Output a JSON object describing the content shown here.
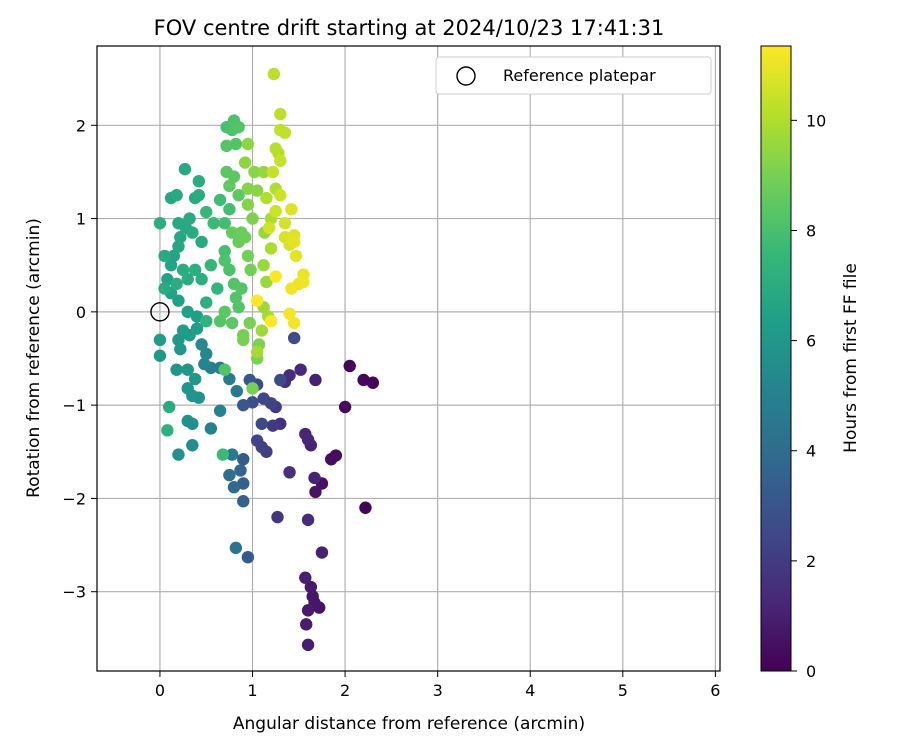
{
  "chart_data": {
    "type": "scatter",
    "title": "FOV centre drift starting at 2024/10/23 17:41:31",
    "xlabel": "Angular distance from reference (arcmin)",
    "ylabel": "Rotation from reference (arcmin)",
    "xlim": [
      -0.68,
      6.05
    ],
    "ylim": [
      -3.85,
      2.85
    ],
    "x_ticks": [
      0,
      1,
      2,
      3,
      4,
      5,
      6
    ],
    "y_ticks": [
      -3,
      -2,
      -1,
      0,
      1,
      2
    ],
    "grid": true,
    "legend": {
      "placement": "top-right",
      "entries": [
        {
          "label": "Reference platepar",
          "marker": "open-circle"
        }
      ]
    },
    "reference_point": {
      "x": 0,
      "y": 0
    },
    "colorbar": {
      "label": "Hours from first FF file",
      "colormap": "viridis",
      "range": [
        0,
        11.35
      ],
      "ticks": [
        0,
        2,
        4,
        6,
        8,
        10
      ]
    },
    "series": [
      {
        "color_key": "hours",
        "points": [
          {
            "x": 2.05,
            "y": -0.58,
            "c": 0.2
          },
          {
            "x": 2.2,
            "y": -0.73,
            "c": 0.2
          },
          {
            "x": 2.3,
            "y": -0.76,
            "c": 0.1
          },
          {
            "x": 2.22,
            "y": -2.1,
            "c": 0.1
          },
          {
            "x": 2.0,
            "y": -1.02,
            "c": 0.3
          },
          {
            "x": 1.9,
            "y": -1.54,
            "c": 0.4
          },
          {
            "x": 1.85,
            "y": -1.58,
            "c": 0.4
          },
          {
            "x": 1.75,
            "y": -1.84,
            "c": 0.5
          },
          {
            "x": 1.68,
            "y": -1.93,
            "c": 0.6
          },
          {
            "x": 1.72,
            "y": -3.17,
            "c": 0.6
          },
          {
            "x": 1.67,
            "y": -3.12,
            "c": 0.7
          },
          {
            "x": 1.65,
            "y": -3.05,
            "c": 0.7
          },
          {
            "x": 1.63,
            "y": -2.95,
            "c": 0.8
          },
          {
            "x": 1.6,
            "y": -3.2,
            "c": 0.8
          },
          {
            "x": 1.58,
            "y": -3.35,
            "c": 0.9
          },
          {
            "x": 1.6,
            "y": -3.57,
            "c": 0.9
          },
          {
            "x": 1.57,
            "y": -2.85,
            "c": 1.0
          },
          {
            "x": 1.75,
            "y": -2.58,
            "c": 1.0
          },
          {
            "x": 1.68,
            "y": -0.73,
            "c": 1.0
          },
          {
            "x": 1.67,
            "y": -1.78,
            "c": 1.1
          },
          {
            "x": 1.63,
            "y": -1.43,
            "c": 1.1
          },
          {
            "x": 1.6,
            "y": -1.37,
            "c": 1.2
          },
          {
            "x": 1.57,
            "y": -1.31,
            "c": 1.2
          },
          {
            "x": 1.52,
            "y": -0.62,
            "c": 1.3
          },
          {
            "x": 1.6,
            "y": -2.23,
            "c": 1.4
          },
          {
            "x": 1.35,
            "y": -0.75,
            "c": 1.5
          },
          {
            "x": 1.4,
            "y": -0.68,
            "c": 1.5
          },
          {
            "x": 1.4,
            "y": -1.72,
            "c": 1.6
          },
          {
            "x": 1.3,
            "y": -1.2,
            "c": 1.6
          },
          {
            "x": 1.27,
            "y": -2.2,
            "c": 1.8
          },
          {
            "x": 1.25,
            "y": -1.02,
            "c": 1.9
          },
          {
            "x": 1.22,
            "y": -1.22,
            "c": 2.0
          },
          {
            "x": 1.15,
            "y": -1.5,
            "c": 2.1
          },
          {
            "x": 1.1,
            "y": -1.45,
            "c": 2.2
          },
          {
            "x": 1.05,
            "y": -1.38,
            "c": 2.3
          },
          {
            "x": 1.2,
            "y": -0.98,
            "c": 2.3
          },
          {
            "x": 1.12,
            "y": -0.93,
            "c": 2.4
          },
          {
            "x": 1.1,
            "y": -1.2,
            "c": 2.5
          },
          {
            "x": 1.05,
            "y": -0.78,
            "c": 2.6
          },
          {
            "x": 1.3,
            "y": -0.73,
            "c": 2.6
          },
          {
            "x": 1.45,
            "y": -0.28,
            "c": 2.7
          },
          {
            "x": 1.0,
            "y": -0.97,
            "c": 2.8
          },
          {
            "x": 0.97,
            "y": -0.73,
            "c": 3.0
          },
          {
            "x": 0.9,
            "y": -1.0,
            "c": 3.1
          },
          {
            "x": 0.95,
            "y": -2.63,
            "c": 3.2
          },
          {
            "x": 0.9,
            "y": -1.58,
            "c": 3.3
          },
          {
            "x": 0.9,
            "y": -1.84,
            "c": 3.4
          },
          {
            "x": 0.9,
            "y": -2.03,
            "c": 3.5
          },
          {
            "x": 0.87,
            "y": -1.7,
            "c": 3.7
          },
          {
            "x": 0.8,
            "y": -1.88,
            "c": 3.9
          },
          {
            "x": 0.75,
            "y": -1.75,
            "c": 4.1
          },
          {
            "x": 0.82,
            "y": -2.53,
            "c": 4.3
          },
          {
            "x": 0.78,
            "y": -1.53,
            "c": 4.5
          },
          {
            "x": 0.83,
            "y": -0.85,
            "c": 4.6
          },
          {
            "x": 0.75,
            "y": -0.72,
            "c": 4.7
          },
          {
            "x": 0.65,
            "y": -0.6,
            "c": 4.8
          },
          {
            "x": 0.55,
            "y": -0.6,
            "c": 4.9
          },
          {
            "x": 0.55,
            "y": -1.25,
            "c": 5.0
          },
          {
            "x": 0.65,
            "y": -1.06,
            "c": 5.1
          },
          {
            "x": 0.48,
            "y": -0.56,
            "c": 5.2
          },
          {
            "x": 0.5,
            "y": -0.45,
            "c": 5.3
          },
          {
            "x": 0.45,
            "y": -0.35,
            "c": 5.4
          },
          {
            "x": 0.35,
            "y": -1.43,
            "c": 5.5
          },
          {
            "x": 0.35,
            "y": -1.2,
            "c": 5.6
          },
          {
            "x": 0.3,
            "y": -1.17,
            "c": 5.7
          },
          {
            "x": 0.42,
            "y": -0.92,
            "c": 5.8
          },
          {
            "x": 0.35,
            "y": -0.9,
            "c": 5.9
          },
          {
            "x": 0.3,
            "y": -0.82,
            "c": 5.9
          },
          {
            "x": 0.38,
            "y": -0.72,
            "c": 6.0
          },
          {
            "x": 0.3,
            "y": -0.62,
            "c": 6.0
          },
          {
            "x": 0.22,
            "y": -0.4,
            "c": 6.1
          },
          {
            "x": 0.2,
            "y": -0.3,
            "c": 6.1
          },
          {
            "x": 0.25,
            "y": -0.2,
            "c": 6.2
          },
          {
            "x": 0.32,
            "y": -0.25,
            "c": 6.2
          },
          {
            "x": 0.4,
            "y": -0.18,
            "c": 6.3
          },
          {
            "x": 0.4,
            "y": -0.05,
            "c": 6.3
          },
          {
            "x": 0.3,
            "y": 0.0,
            "c": 6.4
          },
          {
            "x": 0.2,
            "y": 0.12,
            "c": 6.4
          },
          {
            "x": 0.12,
            "y": 0.2,
            "c": 6.5
          },
          {
            "x": 0.08,
            "y": 0.35,
            "c": 6.5
          },
          {
            "x": 0.12,
            "y": 0.5,
            "c": 6.6
          },
          {
            "x": 0.15,
            "y": 0.6,
            "c": 6.6
          },
          {
            "x": 0.2,
            "y": 0.7,
            "c": 6.7
          },
          {
            "x": 0.22,
            "y": 0.8,
            "c": 6.7
          },
          {
            "x": 0.2,
            "y": 0.95,
            "c": 6.8
          },
          {
            "x": 0.28,
            "y": 0.9,
            "c": 6.8
          },
          {
            "x": 0.32,
            "y": 1.0,
            "c": 6.9
          },
          {
            "x": 0.35,
            "y": 0.85,
            "c": 6.9
          },
          {
            "x": 0.25,
            "y": 0.45,
            "c": 7.0
          },
          {
            "x": 0.3,
            "y": 0.35,
            "c": 7.0
          },
          {
            "x": 0.18,
            "y": 0.3,
            "c": 7.0
          },
          {
            "x": 0.05,
            "y": 0.6,
            "c": 6.9
          },
          {
            "x": 0.05,
            "y": 0.25,
            "c": 6.9
          },
          {
            "x": 0.0,
            "y": -0.3,
            "c": 6.2
          },
          {
            "x": 0.0,
            "y": -0.47,
            "c": 6.1
          },
          {
            "x": 0.18,
            "y": -0.62,
            "c": 6.0
          },
          {
            "x": 0.2,
            "y": -1.53,
            "c": 5.7
          },
          {
            "x": 0.1,
            "y": -1.02,
            "c": 7.0
          },
          {
            "x": 0.08,
            "y": -1.27,
            "c": 7.2
          },
          {
            "x": 0.27,
            "y": 1.53,
            "c": 6.8
          },
          {
            "x": 0.12,
            "y": 1.22,
            "c": 6.7
          },
          {
            "x": 0.18,
            "y": 1.25,
            "c": 6.8
          },
          {
            "x": 0.38,
            "y": 1.22,
            "c": 6.9
          },
          {
            "x": 0.42,
            "y": 1.25,
            "c": 7.0
          },
          {
            "x": 0.42,
            "y": 1.4,
            "c": 6.9
          },
          {
            "x": 0.0,
            "y": 0.95,
            "c": 7.1
          },
          {
            "x": 0.45,
            "y": 0.75,
            "c": 6.8
          },
          {
            "x": 0.38,
            "y": 0.45,
            "c": 7.1
          },
          {
            "x": 0.45,
            "y": 0.35,
            "c": 7.1
          },
          {
            "x": 0.5,
            "y": 0.1,
            "c": 7.2
          },
          {
            "x": 0.5,
            "y": -0.1,
            "c": 7.3
          },
          {
            "x": 0.62,
            "y": 0.25,
            "c": 7.4
          },
          {
            "x": 0.55,
            "y": 0.5,
            "c": 7.5
          },
          {
            "x": 0.5,
            "y": 1.07,
            "c": 7.6
          },
          {
            "x": 0.58,
            "y": 0.95,
            "c": 7.7
          },
          {
            "x": 0.65,
            "y": 1.2,
            "c": 7.8
          },
          {
            "x": 0.7,
            "y": 0.95,
            "c": 7.9
          },
          {
            "x": 0.75,
            "y": 1.1,
            "c": 7.9
          },
          {
            "x": 0.7,
            "y": 0.65,
            "c": 8.0
          },
          {
            "x": 0.7,
            "y": 0.55,
            "c": 8.1
          },
          {
            "x": 0.75,
            "y": 0.45,
            "c": 8.1
          },
          {
            "x": 0.8,
            "y": 0.3,
            "c": 8.2
          },
          {
            "x": 0.82,
            "y": 0.15,
            "c": 8.2
          },
          {
            "x": 0.88,
            "y": 0.25,
            "c": 8.3
          },
          {
            "x": 0.85,
            "y": 0.05,
            "c": 8.3
          },
          {
            "x": 0.78,
            "y": -0.12,
            "c": 8.4
          },
          {
            "x": 0.7,
            "y": 0.0,
            "c": 8.4
          },
          {
            "x": 0.65,
            "y": -0.1,
            "c": 8.3
          },
          {
            "x": 0.7,
            "y": -0.62,
            "c": 8.2
          },
          {
            "x": 0.68,
            "y": -1.53,
            "c": 7.7
          },
          {
            "x": 0.72,
            "y": 1.98,
            "c": 8.0
          },
          {
            "x": 0.78,
            "y": 1.95,
            "c": 8.1
          },
          {
            "x": 0.8,
            "y": 2.05,
            "c": 8.1
          },
          {
            "x": 0.82,
            "y": 1.8,
            "c": 8.2
          },
          {
            "x": 0.85,
            "y": 1.98,
            "c": 8.2
          },
          {
            "x": 0.72,
            "y": 1.78,
            "c": 8.3
          },
          {
            "x": 0.72,
            "y": 1.5,
            "c": 8.4
          },
          {
            "x": 0.8,
            "y": 1.45,
            "c": 8.4
          },
          {
            "x": 0.75,
            "y": 1.35,
            "c": 8.5
          },
          {
            "x": 0.85,
            "y": 1.25,
            "c": 8.5
          },
          {
            "x": 0.78,
            "y": 0.85,
            "c": 8.6
          },
          {
            "x": 0.88,
            "y": 0.85,
            "c": 8.7
          },
          {
            "x": 0.85,
            "y": 0.75,
            "c": 8.7
          },
          {
            "x": 0.92,
            "y": 0.8,
            "c": 8.8
          },
          {
            "x": 0.95,
            "y": 0.6,
            "c": 8.9
          },
          {
            "x": 0.98,
            "y": 0.45,
            "c": 8.9
          },
          {
            "x": 0.9,
            "y": -0.25,
            "c": 8.9
          },
          {
            "x": 0.9,
            "y": -0.3,
            "c": 9.0
          },
          {
            "x": 0.97,
            "y": -0.12,
            "c": 9.0
          },
          {
            "x": 1.0,
            "y": -0.82,
            "c": 9.0
          },
          {
            "x": 1.05,
            "y": -0.5,
            "c": 9.1
          },
          {
            "x": 1.07,
            "y": -0.35,
            "c": 9.1
          },
          {
            "x": 1.0,
            "y": 1.0,
            "c": 9.1
          },
          {
            "x": 0.95,
            "y": 1.15,
            "c": 9.2
          },
          {
            "x": 0.95,
            "y": 1.32,
            "c": 9.2
          },
          {
            "x": 1.05,
            "y": 1.3,
            "c": 9.3
          },
          {
            "x": 1.02,
            "y": 1.5,
            "c": 9.3
          },
          {
            "x": 0.92,
            "y": 1.6,
            "c": 9.4
          },
          {
            "x": 0.95,
            "y": 1.8,
            "c": 9.4
          },
          {
            "x": 1.12,
            "y": 1.5,
            "c": 9.5
          },
          {
            "x": 1.13,
            "y": 0.85,
            "c": 9.5
          },
          {
            "x": 1.12,
            "y": 0.5,
            "c": 9.6
          },
          {
            "x": 1.15,
            "y": 0.32,
            "c": 9.6
          },
          {
            "x": 1.12,
            "y": 0.05,
            "c": 9.7
          },
          {
            "x": 1.1,
            "y": -0.2,
            "c": 9.7
          },
          {
            "x": 1.05,
            "y": -0.43,
            "c": 9.8
          },
          {
            "x": 1.17,
            "y": -0.05,
            "c": 9.8
          },
          {
            "x": 1.2,
            "y": 0.68,
            "c": 9.9
          },
          {
            "x": 1.2,
            "y": 1.0,
            "c": 9.9
          },
          {
            "x": 1.15,
            "y": 1.22,
            "c": 10.0
          },
          {
            "x": 1.25,
            "y": 1.32,
            "c": 10.0
          },
          {
            "x": 1.28,
            "y": 1.7,
            "c": 10.1
          },
          {
            "x": 1.25,
            "y": 1.75,
            "c": 10.1
          },
          {
            "x": 1.23,
            "y": 2.55,
            "c": 10.2
          },
          {
            "x": 1.3,
            "y": 2.12,
            "c": 10.2
          },
          {
            "x": 1.3,
            "y": 1.95,
            "c": 10.3
          },
          {
            "x": 1.35,
            "y": 1.92,
            "c": 10.3
          },
          {
            "x": 1.3,
            "y": 1.62,
            "c": 10.4
          },
          {
            "x": 1.22,
            "y": 1.5,
            "c": 10.4
          },
          {
            "x": 1.3,
            "y": 1.25,
            "c": 10.5
          },
          {
            "x": 1.25,
            "y": 1.08,
            "c": 10.5
          },
          {
            "x": 1.18,
            "y": 0.9,
            "c": 10.6
          },
          {
            "x": 1.35,
            "y": 0.95,
            "c": 10.6
          },
          {
            "x": 1.35,
            "y": 0.8,
            "c": 10.7
          },
          {
            "x": 1.4,
            "y": 0.72,
            "c": 10.7
          },
          {
            "x": 1.42,
            "y": 1.1,
            "c": 10.8
          },
          {
            "x": 1.45,
            "y": 0.82,
            "c": 10.8
          },
          {
            "x": 1.47,
            "y": 0.6,
            "c": 10.9
          },
          {
            "x": 1.45,
            "y": 0.75,
            "c": 10.9
          },
          {
            "x": 1.55,
            "y": 0.4,
            "c": 11.0
          },
          {
            "x": 1.5,
            "y": 0.3,
            "c": 11.0
          },
          {
            "x": 1.55,
            "y": 0.32,
            "c": 11.1
          },
          {
            "x": 1.42,
            "y": 0.25,
            "c": 11.1
          },
          {
            "x": 1.4,
            "y": -0.02,
            "c": 11.2
          },
          {
            "x": 1.45,
            "y": -0.12,
            "c": 11.2
          },
          {
            "x": 1.25,
            "y": 0.38,
            "c": 11.3
          },
          {
            "x": 1.05,
            "y": 0.12,
            "c": 11.3
          },
          {
            "x": 1.2,
            "y": -0.1,
            "c": 11.3
          }
        ]
      }
    ]
  },
  "colors": {
    "viridis": [
      "#440154",
      "#482878",
      "#3e4989",
      "#31688e",
      "#26828e",
      "#1f9e89",
      "#35b779",
      "#6ece58",
      "#b5de2b",
      "#fde725"
    ],
    "grid": "#b0b0b0",
    "axis": "#000000"
  }
}
